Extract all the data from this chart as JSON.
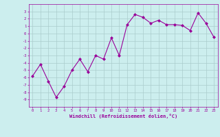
{
  "x": [
    0,
    1,
    2,
    3,
    4,
    5,
    6,
    7,
    8,
    9,
    10,
    11,
    12,
    13,
    14,
    15,
    16,
    17,
    18,
    19,
    20,
    21,
    22,
    23
  ],
  "y": [
    -5.8,
    -4.2,
    -6.5,
    -8.7,
    -7.2,
    -5.0,
    -3.5,
    -5.2,
    -3.0,
    -3.5,
    -0.6,
    -3.0,
    1.2,
    2.6,
    2.2,
    1.4,
    1.8,
    1.2,
    1.2,
    1.1,
    0.4,
    2.8,
    1.4,
    -0.5
  ],
  "line_color": "#990099",
  "marker": "D",
  "marker_size": 2,
  "bg_color": "#cceeee",
  "grid_color": "#aacccc",
  "xlabel": "Windchill (Refroidissement éolien,°C)",
  "xlabel_color": "#990099",
  "tick_color": "#990099",
  "ylim": [
    -10,
    4
  ],
  "xlim": [
    -0.5,
    23.5
  ],
  "yticks": [
    -9,
    -8,
    -7,
    -6,
    -5,
    -4,
    -3,
    -2,
    -1,
    0,
    1,
    2,
    3
  ],
  "xticks": [
    0,
    1,
    2,
    3,
    4,
    5,
    6,
    7,
    8,
    9,
    10,
    11,
    12,
    13,
    14,
    15,
    16,
    17,
    18,
    19,
    20,
    21,
    22,
    23
  ]
}
